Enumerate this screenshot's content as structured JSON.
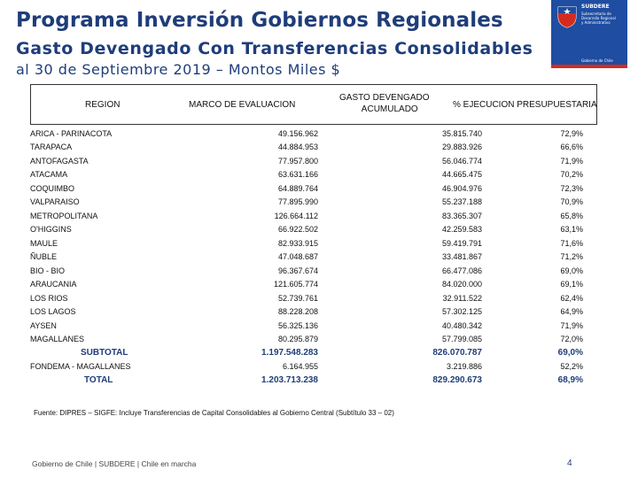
{
  "header": {
    "title": "Programa Inversión Gobiernos Regionales",
    "subtitle": "Gasto Devengado Con Transferencias Consolidables",
    "date_line": "al 30 de Septiembre 2019 – Montos Miles $"
  },
  "logo": {
    "name": "SUBDERE",
    "subtitle_lines": [
      "Subsecretaría de",
      "Desarrollo Regional",
      "y Administrativo"
    ],
    "gob_text": "Gobierno de Chile",
    "colors": {
      "blue": "#1e4da1",
      "red": "#d52b1e"
    }
  },
  "table": {
    "headers": {
      "region": "REGION",
      "marco": "MARCO DE EVALUACION",
      "gasto_line1": "GASTO DEVENGADO",
      "gasto_line2": "ACUMULADO",
      "pct": "% EJECUCION PRESUPUESTARIA"
    },
    "rows": [
      {
        "region": "ARICA - PARINACOTA",
        "marco": "49.156.962",
        "gasto": "35.815.740",
        "pct": "72,9%"
      },
      {
        "region": "TARAPACA",
        "marco": "44.884.953",
        "gasto": "29.883.926",
        "pct": "66,6%"
      },
      {
        "region": "ANTOFAGASTA",
        "marco": "77.957.800",
        "gasto": "56.046.774",
        "pct": "71,9%"
      },
      {
        "region": "ATACAMA",
        "marco": "63.631.166",
        "gasto": "44.665.475",
        "pct": "70,2%"
      },
      {
        "region": "COQUIMBO",
        "marco": "64.889.764",
        "gasto": "46.904.976",
        "pct": "72,3%"
      },
      {
        "region": "VALPARAISO",
        "marco": "77.895.990",
        "gasto": "55.237.188",
        "pct": "70,9%"
      },
      {
        "region": "METROPOLITANA",
        "marco": "126.664.112",
        "gasto": "83.365.307",
        "pct": "65,8%"
      },
      {
        "region": "O'HIGGINS",
        "marco": "66.922.502",
        "gasto": "42.259.583",
        "pct": "63,1%"
      },
      {
        "region": "MAULE",
        "marco": "82.933.915",
        "gasto": "59.419.791",
        "pct": "71,6%"
      },
      {
        "region": "ÑUBLE",
        "marco": "47.048.687",
        "gasto": "33.481.867",
        "pct": "71,2%"
      },
      {
        "region": "BIO - BIO",
        "marco": "96.367.674",
        "gasto": "66.477.086",
        "pct": "69,0%"
      },
      {
        "region": "ARAUCANIA",
        "marco": "121.605.774",
        "gasto": "84.020.000",
        "pct": "69,1%"
      },
      {
        "region": "LOS RIOS",
        "marco": "52.739.761",
        "gasto": "32.911.522",
        "pct": "62,4%"
      },
      {
        "region": "LOS LAGOS",
        "marco": "88.228.208",
        "gasto": "57.302.125",
        "pct": "64,9%"
      },
      {
        "region": "AYSEN",
        "marco": "56.325.136",
        "gasto": "40.480.342",
        "pct": "71,9%"
      },
      {
        "region": "MAGALLANES",
        "marco": "80.295.879",
        "gasto": "57.799.085",
        "pct": "72,0%"
      }
    ],
    "subtotal": {
      "region": "SUBTOTAL",
      "marco": "1.197.548.283",
      "gasto": "826.070.787",
      "pct": "69,0%"
    },
    "fondema": {
      "region": "FONDEMA - MAGALLANES",
      "marco": "6.164.955",
      "gasto": "3.219.886",
      "pct": "52,2%"
    },
    "total": {
      "region": "TOTAL",
      "marco": "1.203.713.238",
      "gasto": "829.290.673",
      "pct": "68,9%"
    }
  },
  "footnote": "Fuente: DIPRES – SIGFE: Incluye Transferencias de Capital Consolidables al Gobierno Central (Subtítulo 33 – 02)",
  "footer": {
    "text": "Gobierno de Chile | SUBDERE | Chile en marcha",
    "page_number": "4"
  }
}
